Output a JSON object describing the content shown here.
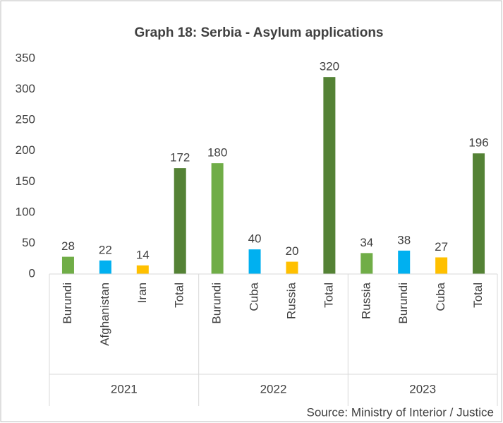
{
  "chart_data": {
    "type": "bar",
    "title": "Graph 18: Serbia - Asylum applications",
    "source": "Source: Ministry of Interior / Justice",
    "groups": [
      {
        "name": "2021",
        "categories": [
          "Burundi",
          "Afghanistan",
          "Iran",
          "Total"
        ],
        "values": [
          28,
          22,
          14,
          172
        ],
        "colors": [
          "#70ad47",
          "#00b0f0",
          "#ffc000",
          "#548235"
        ]
      },
      {
        "name": "2022",
        "categories": [
          "Burundi",
          "Cuba",
          "Russia",
          "Total"
        ],
        "values": [
          180,
          40,
          20,
          320
        ],
        "colors": [
          "#70ad47",
          "#00b0f0",
          "#ffc000",
          "#548235"
        ]
      },
      {
        "name": "2023",
        "categories": [
          "Russia",
          "Burundi",
          "Cuba",
          "Total"
        ],
        "values": [
          34,
          38,
          27,
          196
        ],
        "colors": [
          "#70ad47",
          "#00b0f0",
          "#ffc000",
          "#548235"
        ]
      }
    ],
    "ylim": [
      0,
      350
    ],
    "yticks": [
      0,
      50,
      100,
      150,
      200,
      250,
      300,
      350
    ],
    "grid": false
  }
}
